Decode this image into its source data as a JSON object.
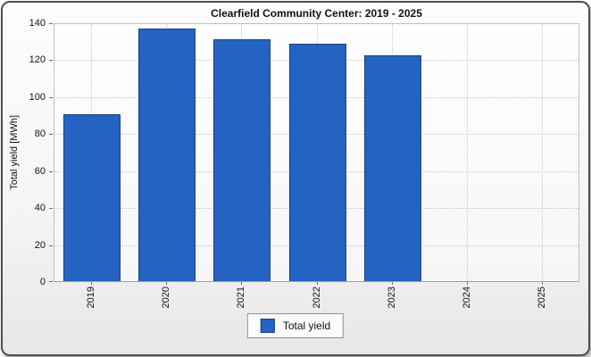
{
  "panel": {
    "title": "Clearfield Community Center: 2019 - 2025"
  },
  "chart_data": {
    "type": "bar",
    "title": "Clearfield Community Center: 2019 - 2025",
    "categories": [
      "2019",
      "2020",
      "2021",
      "2022",
      "2023",
      "2024",
      "2025"
    ],
    "series": [
      {
        "name": "Total yield",
        "values": [
          90.5,
          136.5,
          131,
          128.5,
          122,
          null,
          null
        ]
      }
    ],
    "xlabel": "",
    "ylabel": "Total yield [MWh]",
    "ylim": [
      0,
      140
    ],
    "yticks": [
      0,
      20,
      40,
      60,
      80,
      100,
      120,
      140
    ],
    "grid": "dotted, horizontal and vertical at category centers",
    "legend": {
      "position": "bottom-center",
      "entries": [
        "Total yield"
      ]
    },
    "bar_color": "#2563c2",
    "bar_border_color": "#1a4183",
    "gridline_color": "#c6c6c6"
  }
}
